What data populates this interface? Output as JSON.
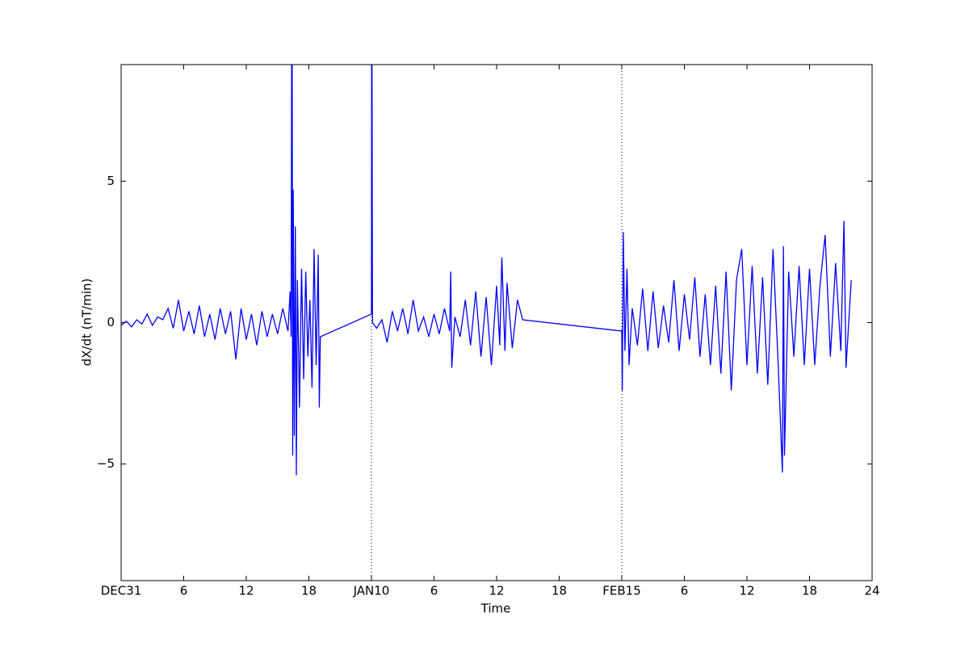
{
  "chart_data": {
    "type": "line",
    "x_label": "Time",
    "y_label": "dX/dt (nT/min)",
    "color": "#0000ff",
    "x": [
      0,
      0.5,
      1,
      1.5,
      2,
      2.5,
      3,
      3.5,
      4,
      4.5,
      5,
      5.5,
      6,
      6.5,
      7,
      7.5,
      8,
      8.5,
      9,
      9.5,
      10,
      10.5,
      11,
      11.5,
      12,
      12.5,
      13,
      13.5,
      14,
      14.5,
      15,
      15.5,
      16,
      16.2,
      16.3,
      16.35,
      16.4,
      16.45,
      16.5,
      16.6,
      16.7,
      16.8,
      16.9,
      17.1,
      17.3,
      17.5,
      17.7,
      17.9,
      18.1,
      18.3,
      18.5,
      18.7,
      18.9,
      19,
      19.1,
      24,
      24.02,
      24.05,
      24.1,
      24.3,
      24.5,
      25,
      25.5,
      26,
      26.5,
      27,
      27.5,
      28,
      28.5,
      29,
      29.5,
      30,
      30.5,
      31,
      31.5,
      31.6,
      31.7,
      32,
      32.5,
      33,
      33.5,
      34,
      34.5,
      35,
      35.5,
      36,
      36.3,
      36.5,
      36.8,
      37,
      37.5,
      38,
      38.5,
      48,
      48.05,
      48.15,
      48.3,
      48.5,
      48.7,
      49,
      49.5,
      50,
      50.5,
      51,
      51.5,
      52,
      52.5,
      53,
      53.5,
      54,
      54.5,
      55,
      55.5,
      56,
      56.5,
      57,
      57.5,
      58,
      58.5,
      59,
      59.5,
      60,
      60.5,
      61,
      61.5,
      62,
      62.5,
      63,
      63.4,
      63.5,
      63.6,
      64,
      64.5,
      65,
      65.5,
      66,
      66.5,
      67,
      67.5,
      68,
      68.5,
      69,
      69.3,
      69.5,
      70
    ],
    "values": [
      -0.1,
      0.05,
      -0.15,
      0.1,
      -0.05,
      0.3,
      -0.1,
      0.2,
      0.1,
      0.5,
      -0.2,
      0.8,
      -0.3,
      0.4,
      -0.4,
      0.6,
      -0.5,
      0.3,
      -0.6,
      0.5,
      -0.4,
      0.4,
      -1.3,
      0.5,
      -0.6,
      0.3,
      -0.8,
      0.4,
      -0.5,
      0.3,
      -0.4,
      0.5,
      -0.3,
      1.1,
      -0.5,
      9.5,
      9.5,
      -4.7,
      4.7,
      -4,
      3.4,
      -5.4,
      1.5,
      -3,
      1.9,
      -2,
      1.8,
      -1.2,
      0.8,
      -2.3,
      2.6,
      -1.5,
      2.4,
      -3,
      -0.5,
      0.3,
      9.5,
      9.5,
      0,
      -0.1,
      -0.2,
      0.1,
      -0.7,
      0.4,
      -0.3,
      0.5,
      -0.4,
      0.8,
      -0.3,
      0.2,
      -0.5,
      0.3,
      -0.4,
      0.5,
      -0.3,
      1.8,
      -1.6,
      0.2,
      -0.5,
      0.8,
      -0.8,
      1.1,
      -1.2,
      0.9,
      -1.5,
      1.3,
      -0.8,
      2.3,
      -1,
      1.4,
      -0.9,
      0.8,
      0.1,
      -0.3,
      -2.4,
      3.2,
      -1,
      1.9,
      -1.5,
      0.5,
      -0.8,
      1.2,
      -1,
      1.1,
      -0.9,
      0.6,
      -0.7,
      1.5,
      -1,
      1,
      -0.6,
      1.6,
      -1.2,
      1,
      -1.5,
      1.3,
      -1.8,
      1.8,
      -2.4,
      1.5,
      2.6,
      -1.5,
      2,
      -1.8,
      1.6,
      -2.2,
      2.6,
      -1.5,
      -5.3,
      2.7,
      -4.7,
      1.8,
      -1.2,
      2,
      -1.5,
      1.9,
      -1.5,
      1.3,
      3.1,
      -1.2,
      2.1,
      -1,
      3.6,
      -1.6,
      1.5
    ],
    "vlines": [
      24,
      48
    ],
    "xlim": [
      0,
      72
    ],
    "xticks": [
      {
        "value": 0,
        "label": "DEC31"
      },
      6,
      12,
      18,
      {
        "value": 24,
        "label": "JAN10"
      },
      {
        "value": 30,
        "label": "6"
      },
      {
        "value": 36,
        "label": "12"
      },
      {
        "value": 42,
        "label": "18"
      },
      {
        "value": 48,
        "label": "FEB15"
      },
      {
        "value": 54,
        "label": "6"
      },
      {
        "value": 60,
        "label": "12"
      },
      {
        "value": 66,
        "label": "18"
      },
      {
        "value": 72,
        "label": "24"
      }
    ],
    "ylim": [
      -9.12,
      9.12
    ],
    "yticks": [
      {
        "value": -5,
        "label": "−5"
      },
      0,
      5
    ]
  }
}
